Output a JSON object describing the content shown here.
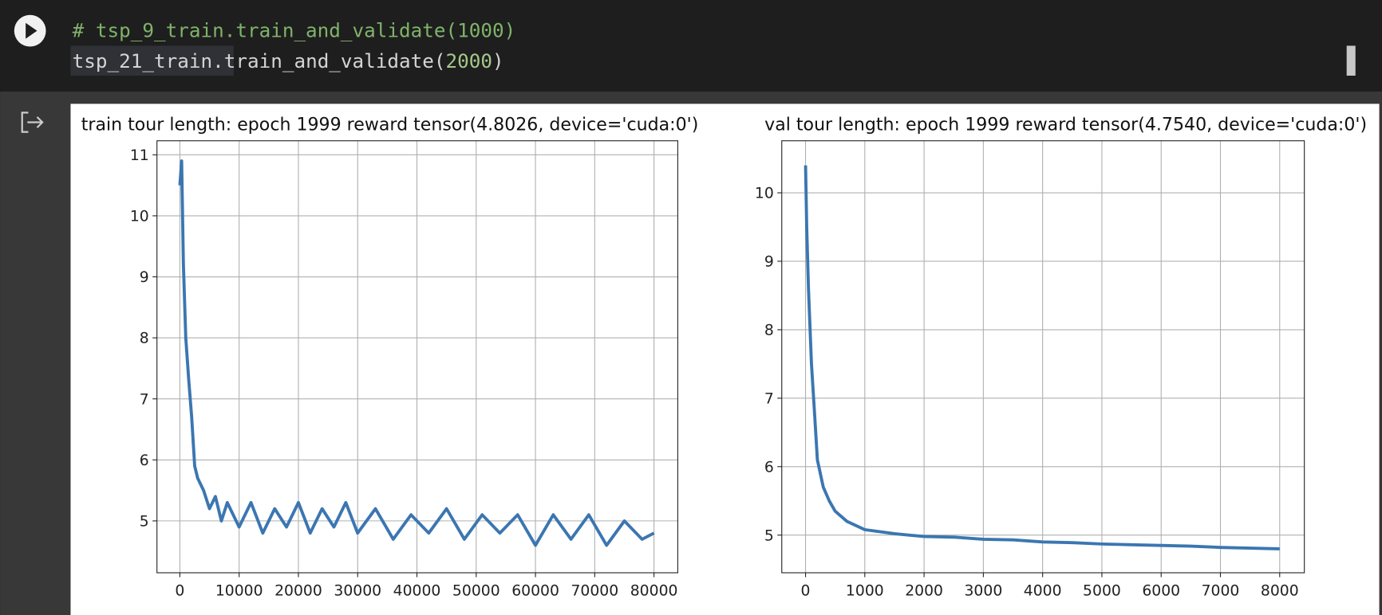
{
  "code": {
    "comment": "# tsp_9_train.train_and_validate(1000)",
    "line": [
      "tsp_21_train",
      ".train_and_validate(",
      "2000",
      ")"
    ]
  },
  "chart_data": [
    {
      "type": "line",
      "title": "train tour length: epoch 1999 reward tensor(4.8026, device='cuda:0')",
      "x": [
        0,
        300,
        600,
        1000,
        1500,
        2000,
        2500,
        3000,
        4000,
        5000,
        6000,
        7000,
        8000,
        10000,
        12000,
        14000,
        16000,
        18000,
        20000,
        22000,
        24000,
        26000,
        28000,
        30000,
        33000,
        36000,
        39000,
        42000,
        45000,
        48000,
        51000,
        54000,
        57000,
        60000,
        63000,
        66000,
        69000,
        72000,
        75000,
        78000,
        80000
      ],
      "values": [
        10.5,
        10.9,
        9.2,
        8.0,
        7.3,
        6.7,
        5.9,
        5.7,
        5.5,
        5.2,
        5.4,
        5.0,
        5.3,
        4.9,
        5.3,
        4.8,
        5.2,
        4.9,
        5.3,
        4.8,
        5.2,
        4.9,
        5.3,
        4.8,
        5.2,
        4.7,
        5.1,
        4.8,
        5.2,
        4.7,
        5.1,
        4.8,
        5.1,
        4.6,
        5.1,
        4.7,
        5.1,
        4.6,
        5.0,
        4.7,
        4.8
      ],
      "color": "#3b76b1",
      "grid": true,
      "xlim": [
        -3866,
        84015
      ],
      "ylim": [
        4.15,
        11.23
      ],
      "xticks": [
        0,
        10000,
        20000,
        30000,
        40000,
        50000,
        60000,
        70000,
        80000
      ],
      "yticks": [
        5,
        6,
        7,
        8,
        9,
        10,
        11
      ]
    },
    {
      "type": "line",
      "title": "val tour length: epoch 1999 reward tensor(4.7540, device='cuda:0')",
      "x": [
        0,
        20,
        50,
        100,
        150,
        200,
        300,
        400,
        500,
        700,
        1000,
        1500,
        2000,
        2500,
        3000,
        3500,
        4000,
        4500,
        5000,
        5500,
        6000,
        6500,
        7000,
        7500,
        8000
      ],
      "values": [
        10.4,
        9.5,
        8.6,
        7.5,
        6.8,
        6.1,
        5.7,
        5.5,
        5.35,
        5.2,
        5.08,
        5.02,
        4.98,
        4.97,
        4.94,
        4.93,
        4.9,
        4.89,
        4.87,
        4.86,
        4.85,
        4.84,
        4.82,
        4.81,
        4.8
      ],
      "color": "#3b76b1",
      "grid": true,
      "xlim": [
        -401,
        8416
      ],
      "ylim": [
        4.45,
        10.76
      ],
      "xticks": [
        0,
        1000,
        2000,
        3000,
        4000,
        5000,
        6000,
        7000,
        8000
      ],
      "yticks": [
        5,
        6,
        7,
        8,
        9,
        10
      ]
    }
  ]
}
